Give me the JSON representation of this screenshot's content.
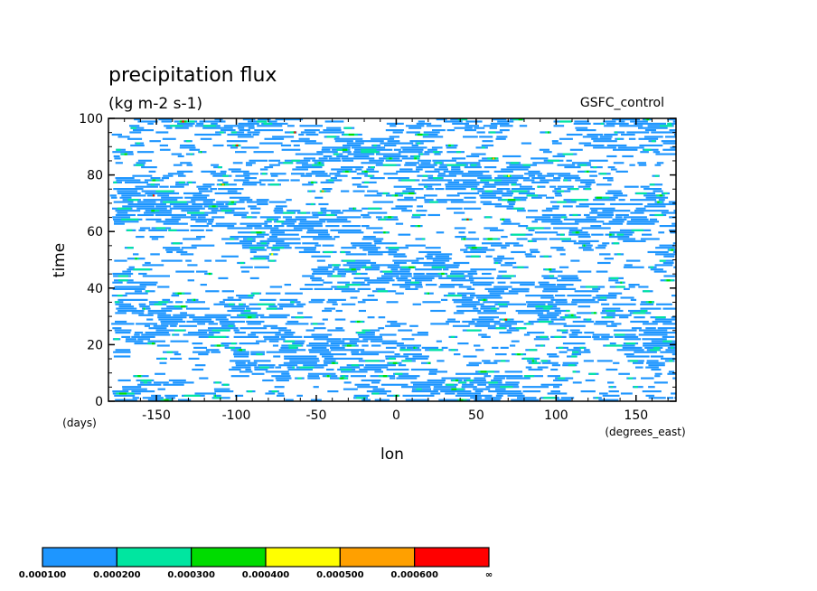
{
  "chart_data": {
    "type": "heatmap",
    "title": "precipitation flux",
    "subtitle": "(kg m-2 s-1)",
    "label_right": "GSFC_control",
    "xlabel": "lon",
    "xunit": "(degrees_east)",
    "ylabel": "time",
    "yunit": "(days)",
    "xlim": [
      -180,
      175
    ],
    "ylim": [
      0,
      100
    ],
    "xticks": [
      -150,
      -100,
      -50,
      0,
      50,
      100,
      150
    ],
    "yticks": [
      0,
      20,
      40,
      60,
      80,
      100
    ],
    "grid": false,
    "colorbar": {
      "levels": [
        "0.000100",
        "0.000200",
        "0.000300",
        "0.000400",
        "0.000500",
        "0.000600",
        "∞"
      ],
      "colors": [
        "#1e96ff",
        "#00e6a0",
        "#00dc00",
        "#ffff00",
        "#ffa000",
        "#ff0000"
      ]
    },
    "pattern_note_values": {
      "dominant_class": "0.000100-0.000200",
      "approx_fraction_covered": 0.6
    }
  }
}
